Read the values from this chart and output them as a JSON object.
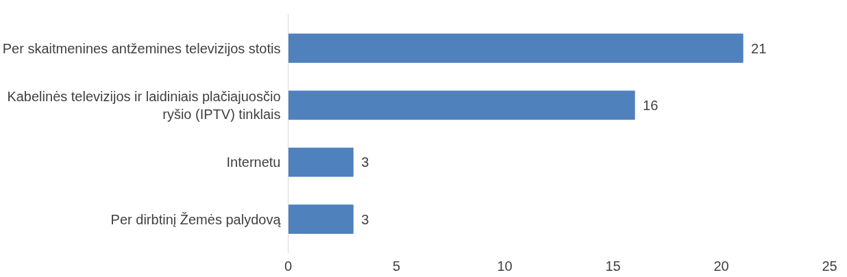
{
  "chart_data": {
    "type": "bar",
    "orientation": "horizontal",
    "categories": [
      "Per skaitmenines antžemines televizijos stotis",
      "Kabelinės televizijos ir laidiniais plačiajuosčio ryšio (IPTV) tinklais",
      "Internetu",
      "Per dirbtinį Žemės palydovą"
    ],
    "values": [
      21,
      16,
      3,
      3
    ],
    "color": "#4f81bd",
    "xlim": [
      0,
      25
    ],
    "xticks": [
      0,
      5,
      10,
      15,
      20,
      25
    ],
    "grid": false,
    "data_labels": true
  }
}
